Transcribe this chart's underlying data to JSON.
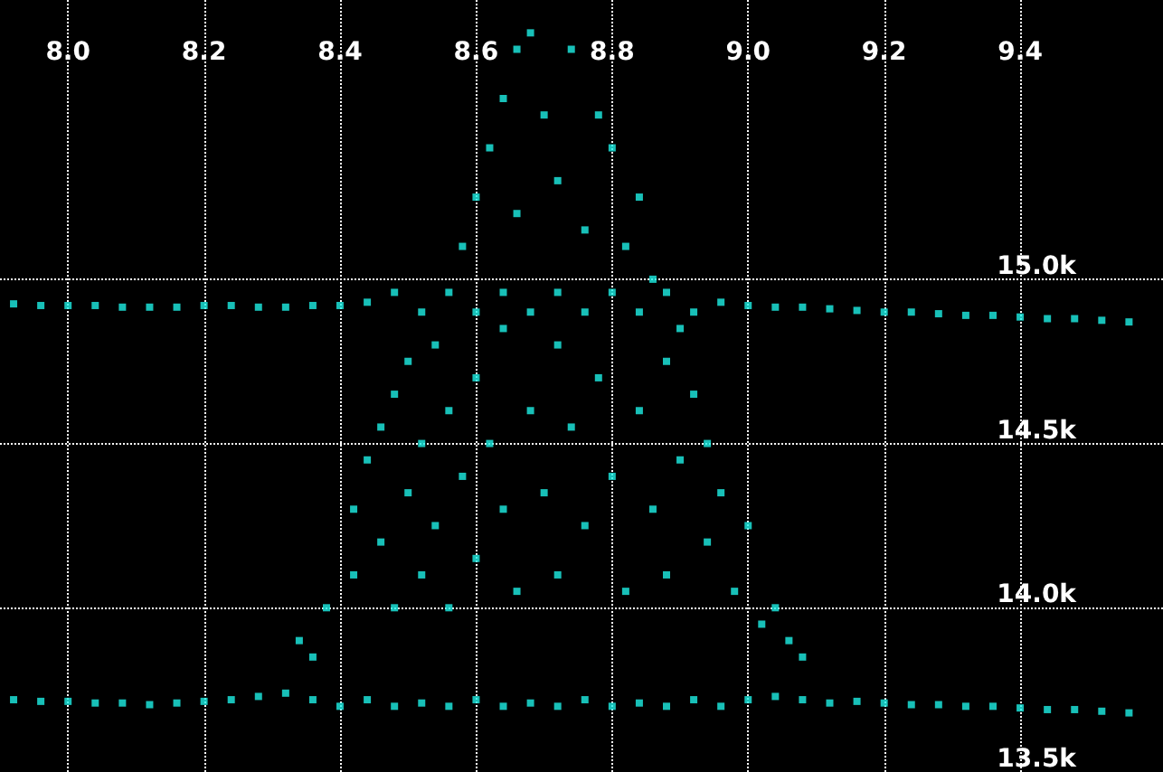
{
  "chart_data": {
    "type": "scatter",
    "marker": "square",
    "grid": true,
    "xlim": [
      7.9,
      9.61
    ],
    "xticks": [
      {
        "value": 8,
        "label": "8.0"
      },
      8.2,
      8.4,
      8.6,
      8.8,
      {
        "value": 9,
        "label": "9.0"
      },
      9.2,
      9.4
    ],
    "ylim": [
      13500,
      15850
    ],
    "yticks": [
      {
        "value": 13500,
        "label": "13.5k"
      },
      {
        "value": 14000,
        "label": "14.0k"
      },
      {
        "value": 14500,
        "label": "14.5k"
      },
      {
        "value": 15000,
        "label": "15.0k"
      }
    ],
    "x": [
      7.92,
      7.96,
      8.0,
      8.04,
      8.08,
      8.12,
      8.16,
      8.2,
      8.24,
      8.28,
      8.32,
      8.36,
      8.4,
      8.44,
      8.48,
      8.52,
      8.56,
      8.6,
      8.64,
      8.68,
      8.72,
      8.76,
      8.8,
      8.84,
      8.88,
      8.92,
      8.96,
      9.0,
      9.04,
      9.08,
      9.12,
      9.16,
      9.2,
      9.24,
      9.28,
      9.32,
      9.36,
      9.4,
      9.44,
      9.48,
      9.52,
      9.56,
      7.92,
      7.96,
      8.0,
      8.04,
      8.08,
      8.12,
      8.16,
      8.2,
      8.24,
      8.28,
      8.32,
      8.36,
      8.4,
      8.44,
      8.48,
      8.52,
      8.56,
      8.6,
      8.64,
      8.68,
      8.72,
      8.76,
      8.8,
      8.84,
      8.88,
      8.92,
      8.96,
      9.0,
      9.04,
      9.08,
      9.12,
      9.16,
      9.2,
      9.24,
      9.28,
      9.32,
      9.36,
      9.4,
      9.44,
      9.48,
      9.52,
      9.56,
      8.34,
      8.36,
      8.38,
      8.42,
      8.42,
      8.44,
      8.46,
      8.46,
      8.48,
      8.48,
      8.5,
      8.5,
      8.52,
      8.52,
      8.54,
      8.54,
      8.56,
      8.56,
      8.58,
      8.58,
      8.6,
      8.6,
      8.6,
      8.62,
      8.62,
      8.64,
      8.64,
      8.64,
      8.66,
      8.66,
      8.66,
      8.68,
      8.68,
      8.7,
      8.7,
      8.72,
      8.72,
      8.72,
      8.74,
      8.74,
      8.76,
      8.76,
      8.78,
      8.78,
      8.8,
      8.8,
      8.82,
      8.82,
      8.84,
      8.84,
      8.86,
      8.86,
      8.88,
      8.88,
      8.9,
      8.9,
      8.92,
      8.94,
      8.94,
      8.96,
      8.98,
      9.0,
      9.02,
      9.04,
      9.06,
      9.08
    ],
    "series": [
      {
        "color": "#1ef0e6",
        "values": [
          13720,
          13715,
          13715,
          13710,
          13710,
          13705,
          13710,
          13715,
          13720,
          13730,
          13740,
          13720,
          13700,
          13720,
          13700,
          13710,
          13700,
          13720,
          13700,
          13710,
          13700,
          13720,
          13700,
          13710,
          13700,
          13720,
          13700,
          13720,
          13730,
          13720,
          13710,
          13715,
          13710,
          13705,
          13705,
          13700,
          13700,
          13695,
          13690,
          13690,
          13685,
          13680,
          14925,
          14920,
          14920,
          14920,
          14915,
          14915,
          14915,
          14920,
          14920,
          14915,
          14915,
          14920,
          14920,
          14930,
          14960,
          14900,
          14960,
          14900,
          14960,
          14900,
          14960,
          14900,
          14960,
          14900,
          14960,
          14900,
          14930,
          14920,
          14915,
          14915,
          14910,
          14905,
          14900,
          14900,
          14895,
          14890,
          14890,
          14885,
          14880,
          14880,
          14875,
          14870,
          13900,
          13850,
          14000,
          14100,
          14300,
          14450,
          14200,
          14550,
          14000,
          14650,
          14350,
          14750,
          14100,
          14500,
          14800,
          14250,
          14600,
          14000,
          15100,
          14400,
          15250,
          14700,
          14150,
          15400,
          14500,
          15550,
          14850,
          14300,
          15700,
          15200,
          14050,
          15750,
          14600,
          15500,
          14350,
          15300,
          14800,
          14100,
          15700,
          14550,
          15150,
          14250,
          15500,
          14700,
          15400,
          14400,
          15100,
          14050,
          15250,
          14600,
          15000,
          14300,
          14750,
          14100,
          14850,
          14450,
          14650,
          14500,
          14200,
          14350,
          14050,
          14250,
          13950,
          14000,
          13900,
          13850
        ]
      }
    ]
  }
}
